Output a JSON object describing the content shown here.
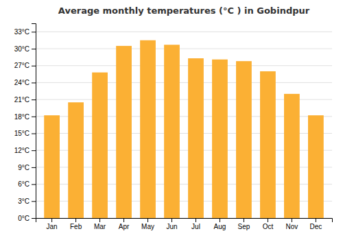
{
  "chart_data": {
    "type": "bar",
    "title": "Average monthly temperatures (°C ) in Gobindpur",
    "categories": [
      "Jan",
      "Feb",
      "Mar",
      "Apr",
      "May",
      "Jun",
      "Jul",
      "Aug",
      "Sep",
      "Oct",
      "Nov",
      "Dec"
    ],
    "values": [
      18.2,
      20.5,
      25.8,
      30.5,
      31.5,
      30.7,
      28.3,
      28.1,
      27.8,
      26.0,
      22.0,
      18.2
    ],
    "color": "#FBB034",
    "ylim": [
      0,
      34.5
    ],
    "yticks": [
      {
        "value": 0,
        "label": "0°C"
      },
      {
        "value": 3,
        "label": "3°C"
      },
      {
        "value": 6,
        "label": "6°C"
      },
      {
        "value": 9,
        "label": "9°C"
      },
      {
        "value": 12,
        "label": "12°C"
      },
      {
        "value": 15,
        "label": "15°C"
      },
      {
        "value": 18,
        "label": "18°C"
      },
      {
        "value": 21,
        "label": "21°C"
      },
      {
        "value": 24,
        "label": "24°C"
      },
      {
        "value": 27,
        "label": "27°C"
      },
      {
        "value": 30,
        "label": "30°C"
      },
      {
        "value": 33,
        "label": "33°C"
      }
    ],
    "grid": true
  }
}
